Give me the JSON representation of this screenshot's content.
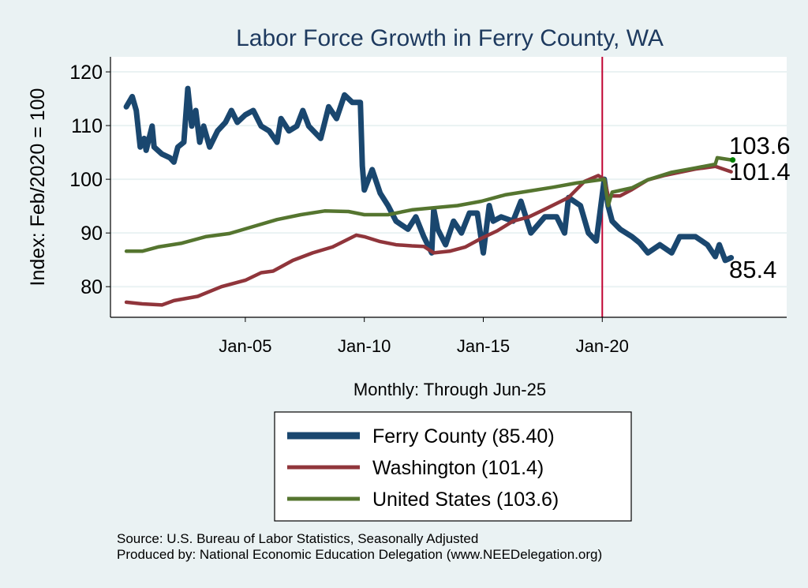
{
  "chart_data": {
    "type": "line",
    "title": "Labor Force Growth in Ferry  County, WA",
    "xlabel": "Monthly: Through Jun-25",
    "ylabel": "Index: Feb/2020 = 100",
    "x_ticks": [
      {
        "date": "2005-01",
        "label": "Jan-05"
      },
      {
        "date": "2010-01",
        "label": "Jan-10"
      },
      {
        "date": "2015-01",
        "label": "Jan-15"
      },
      {
        "date": "2020-01",
        "label": "Jan-20"
      }
    ],
    "y_ticks": [
      80,
      90,
      100,
      110,
      120
    ],
    "xlim": [
      "1999-05",
      "2027-10"
    ],
    "ylim": [
      74.3,
      122.8
    ],
    "grid": "horizontal",
    "reference_line": {
      "date": "2020-01",
      "color": "#c10534"
    },
    "legend_placement": "bottom",
    "series": [
      {
        "name": "Ferry  County (85.40)",
        "color": "#1a476f",
        "end_label": "85.4",
        "points": [
          [
            "2000-01",
            113.5
          ],
          [
            "2000-04",
            115.4
          ],
          [
            "2000-06",
            112.8
          ],
          [
            "2000-08",
            106
          ],
          [
            "2000-10",
            107.6
          ],
          [
            "2000-11",
            105.4
          ],
          [
            "2001-02",
            109.9
          ],
          [
            "2001-03",
            106
          ],
          [
            "2001-07",
            104.7
          ],
          [
            "2001-11",
            104
          ],
          [
            "2002-01",
            103.2
          ],
          [
            "2002-03",
            106
          ],
          [
            "2002-06",
            106.9
          ],
          [
            "2002-08",
            116.9
          ],
          [
            "2002-10",
            109.9
          ],
          [
            "2002-12",
            112.8
          ],
          [
            "2003-02",
            106.9
          ],
          [
            "2003-04",
            109.9
          ],
          [
            "2003-07",
            106
          ],
          [
            "2003-11",
            109
          ],
          [
            "2004-03",
            110.6
          ],
          [
            "2004-06",
            112.8
          ],
          [
            "2004-09",
            110.6
          ],
          [
            "2005-01",
            112
          ],
          [
            "2005-05",
            112.8
          ],
          [
            "2005-09",
            109.9
          ],
          [
            "2006-01",
            109
          ],
          [
            "2006-05",
            106.9
          ],
          [
            "2006-07",
            111.3
          ],
          [
            "2006-11",
            109
          ],
          [
            "2007-03",
            109.9
          ],
          [
            "2007-06",
            112.8
          ],
          [
            "2007-09",
            109.9
          ],
          [
            "2008-03",
            107.6
          ],
          [
            "2008-07",
            113.5
          ],
          [
            "2008-11",
            111.3
          ],
          [
            "2009-03",
            115.7
          ],
          [
            "2009-07",
            114.3
          ],
          [
            "2009-11",
            114.3
          ],
          [
            "2009-12",
            102.5
          ],
          [
            "2010-01",
            98
          ],
          [
            "2010-05",
            101.8
          ],
          [
            "2010-09",
            97.4
          ],
          [
            "2011-01",
            95.1
          ],
          [
            "2011-05",
            92.2
          ],
          [
            "2011-11",
            90.7
          ],
          [
            "2012-03",
            93
          ],
          [
            "2012-07",
            89.3
          ],
          [
            "2012-11",
            86.3
          ],
          [
            "2012-12",
            94.4
          ],
          [
            "2013-02",
            90.7
          ],
          [
            "2013-06",
            87.8
          ],
          [
            "2013-10",
            92.2
          ],
          [
            "2014-02",
            90
          ],
          [
            "2014-06",
            93.7
          ],
          [
            "2014-10",
            93.7
          ],
          [
            "2015-01",
            86.3
          ],
          [
            "2015-04",
            95.1
          ],
          [
            "2015-06",
            92.2
          ],
          [
            "2015-10",
            93
          ],
          [
            "2016-04",
            92.2
          ],
          [
            "2016-08",
            95.9
          ],
          [
            "2017-01",
            90
          ],
          [
            "2017-08",
            93
          ],
          [
            "2018-02",
            93
          ],
          [
            "2018-06",
            90
          ],
          [
            "2018-08",
            96.6
          ],
          [
            "2019-02",
            95.1
          ],
          [
            "2019-06",
            90
          ],
          [
            "2019-10",
            88.5
          ],
          [
            "2020-02",
            100
          ],
          [
            "2020-04",
            95
          ],
          [
            "2020-06",
            92.2
          ],
          [
            "2020-10",
            90.7
          ],
          [
            "2021-04",
            89.3
          ],
          [
            "2021-08",
            88.1
          ],
          [
            "2021-12",
            86.3
          ],
          [
            "2022-06",
            87.8
          ],
          [
            "2022-12",
            86.3
          ],
          [
            "2023-04",
            89.3
          ],
          [
            "2023-12",
            89.3
          ],
          [
            "2024-06",
            87.8
          ],
          [
            "2024-10",
            85.6
          ],
          [
            "2024-12",
            87.8
          ],
          [
            "2025-03",
            84.9
          ],
          [
            "2025-06",
            85.4
          ]
        ]
      },
      {
        "name": "Washington (101.4)",
        "color": "#90353b",
        "end_label": "101.4",
        "points": [
          [
            "2000-01",
            77.1
          ],
          [
            "2000-09",
            76.8
          ],
          [
            "2001-07",
            76.6
          ],
          [
            "2002-01",
            77.4
          ],
          [
            "2003-01",
            78.2
          ],
          [
            "2004-01",
            80
          ],
          [
            "2005-01",
            81.2
          ],
          [
            "2005-09",
            82.6
          ],
          [
            "2006-03",
            82.9
          ],
          [
            "2007-01",
            84.9
          ],
          [
            "2007-11",
            86.3
          ],
          [
            "2008-09",
            87.4
          ],
          [
            "2009-09",
            89.6
          ],
          [
            "2010-01",
            89.3
          ],
          [
            "2010-09",
            88.4
          ],
          [
            "2011-05",
            87.8
          ],
          [
            "2012-01",
            87.6
          ],
          [
            "2012-07",
            87.5
          ],
          [
            "2012-12",
            86.3
          ],
          [
            "2013-08",
            86.6
          ],
          [
            "2014-04",
            87.4
          ],
          [
            "2014-12",
            89
          ],
          [
            "2015-08",
            90.4
          ],
          [
            "2016-04",
            92.2
          ],
          [
            "2016-12",
            93
          ],
          [
            "2017-08",
            94.4
          ],
          [
            "2018-08",
            96.6
          ],
          [
            "2019-04",
            99.6
          ],
          [
            "2019-11",
            100.7
          ],
          [
            "2020-02",
            100
          ],
          [
            "2020-04",
            96.9
          ],
          [
            "2020-10",
            96.9
          ],
          [
            "2021-04",
            98.1
          ],
          [
            "2021-12",
            99.9
          ],
          [
            "2022-08",
            100.7
          ],
          [
            "2023-04",
            101.3
          ],
          [
            "2023-12",
            101.9
          ],
          [
            "2024-10",
            102.4
          ],
          [
            "2025-06",
            101.4
          ]
        ]
      },
      {
        "name": "United States (103.6)",
        "color": "#55752f",
        "end_label": "103.6",
        "points": [
          [
            "2000-01",
            86.6
          ],
          [
            "2000-09",
            86.6
          ],
          [
            "2001-05",
            87.4
          ],
          [
            "2002-05",
            88.1
          ],
          [
            "2003-05",
            89.3
          ],
          [
            "2004-05",
            89.9
          ],
          [
            "2005-05",
            91.2
          ],
          [
            "2006-05",
            92.5
          ],
          [
            "2007-05",
            93.4
          ],
          [
            "2008-05",
            94.1
          ],
          [
            "2009-05",
            94
          ],
          [
            "2010-01",
            93.4
          ],
          [
            "2011-01",
            93.4
          ],
          [
            "2012-01",
            94.3
          ],
          [
            "2012-12",
            94.7
          ],
          [
            "2013-12",
            95.1
          ],
          [
            "2014-12",
            95.9
          ],
          [
            "2015-12",
            97.1
          ],
          [
            "2016-12",
            97.8
          ],
          [
            "2017-12",
            98.5
          ],
          [
            "2018-12",
            99.3
          ],
          [
            "2020-02",
            100
          ],
          [
            "2020-04",
            95.1
          ],
          [
            "2020-06",
            97.6
          ],
          [
            "2021-04",
            98.4
          ],
          [
            "2021-12",
            99.9
          ],
          [
            "2022-12",
            101.3
          ],
          [
            "2023-12",
            102.1
          ],
          [
            "2024-10",
            102.8
          ],
          [
            "2024-11",
            104
          ],
          [
            "2025-06",
            103.6
          ]
        ]
      }
    ]
  },
  "footer": {
    "source": "Source: U.S. Bureau of Labor Statistics, Seasonally Adjusted",
    "produced_by": "Produced by: National Economic Education Delegation (www.NEEDelegation.org)"
  }
}
